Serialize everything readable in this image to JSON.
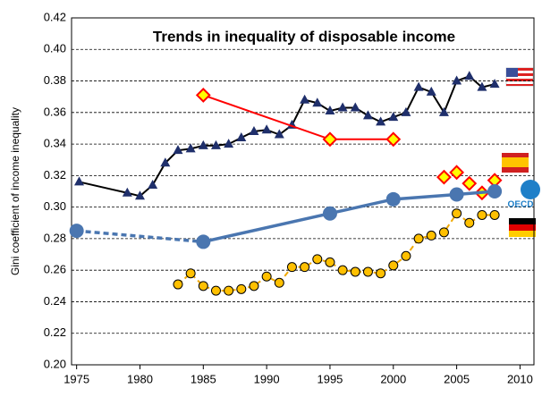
{
  "chart_data": {
    "type": "line",
    "title": "Trends in inequality of disposable income",
    "y_label": "Gini coefficient of income inequality",
    "logo_text": "OECD",
    "xlim": [
      1974.6,
      2011.1
    ],
    "xticks": [
      1975,
      1980,
      1985,
      1990,
      1995,
      2000,
      2005,
      2010
    ],
    "ylim": [
      0.2,
      0.42
    ],
    "yticks": [
      {
        "value": 0.2,
        "label": "0.20"
      },
      {
        "value": 0.22,
        "label": "0.22"
      },
      {
        "value": 0.24,
        "label": "0.24"
      },
      {
        "value": 0.26,
        "label": "0.26"
      },
      {
        "value": 0.28,
        "label": "0.28"
      },
      {
        "value": 0.3,
        "label": "0.30"
      },
      {
        "value": 0.32,
        "label": "0.32"
      },
      {
        "value": 0.34,
        "label": "0.34"
      },
      {
        "value": 0.36,
        "label": "0.36"
      },
      {
        "value": 0.38,
        "label": "0.38"
      },
      {
        "value": 0.4,
        "label": "0.40"
      },
      {
        "value": 0.42,
        "label": "0.42"
      }
    ],
    "grid": true,
    "series": [
      {
        "color": "#000000",
        "marker": "triangle",
        "marker_color": "#1f2f6b",
        "line": true,
        "dashed_segments": [],
        "x": [
          1975.2,
          1979,
          1980,
          1981,
          1982,
          1983,
          1984,
          1985,
          1986,
          1987,
          1988,
          1989,
          1990,
          1991,
          1992,
          1993,
          1994,
          1995,
          1996,
          1997,
          1998,
          1999,
          2000,
          2001,
          2002,
          2003,
          2004,
          2005,
          2006,
          2007,
          2008
        ],
        "values": [
          0.316,
          0.309,
          0.307,
          0.314,
          0.328,
          0.336,
          0.337,
          0.339,
          0.339,
          0.34,
          0.344,
          0.348,
          0.349,
          0.346,
          0.352,
          0.368,
          0.366,
          0.361,
          0.363,
          0.363,
          0.358,
          0.354,
          0.357,
          0.36,
          0.376,
          0.373,
          0.36,
          0.38,
          0.383,
          0.376,
          0.378
        ]
      },
      {
        "color": "#ff0000",
        "marker": "diamond",
        "marker_color": "#ffff00",
        "line": true,
        "dashed_segments": [],
        "x": [
          1985,
          1995,
          2000
        ],
        "values": [
          0.371,
          0.343,
          0.343
        ]
      },
      {
        "color": "#ff0000",
        "marker": "diamond",
        "marker_color": "#ffff00",
        "line": false,
        "dashed_segments": [],
        "x": [
          2004,
          2005,
          2006,
          2007,
          2008
        ],
        "values": [
          0.319,
          0.322,
          0.315,
          0.309,
          0.317
        ]
      },
      {
        "color": "#4a76b0",
        "marker": "big-circle",
        "marker_color": "#4a76b0",
        "line": true,
        "dashed_segments": [
          0
        ],
        "x": [
          1975,
          1985,
          1995,
          2000,
          2005,
          2008
        ],
        "values": [
          0.285,
          0.278,
          0.296,
          0.305,
          0.308,
          0.31
        ]
      },
      {
        "color": "#f0a800",
        "marker": "circle",
        "marker_color": "#ffc000",
        "line": true,
        "line_dashed": true,
        "dashed_segments": [],
        "x": [
          1983,
          1984,
          1985,
          1986,
          1987,
          1988,
          1989,
          1990,
          1991,
          1992,
          1993,
          1994,
          1995,
          1996,
          1997,
          1998,
          1999,
          2000,
          2001,
          2002,
          2003,
          2004,
          2005,
          2006,
          2007,
          2008
        ],
        "values": [
          0.251,
          0.258,
          0.25,
          0.247,
          0.247,
          0.248,
          0.25,
          0.256,
          0.252,
          0.262,
          0.262,
          0.267,
          0.265,
          0.26,
          0.259,
          0.259,
          0.258,
          0.263,
          0.269,
          0.28,
          0.282,
          0.284,
          0.296,
          0.29,
          0.295,
          0.295
        ]
      }
    ]
  }
}
